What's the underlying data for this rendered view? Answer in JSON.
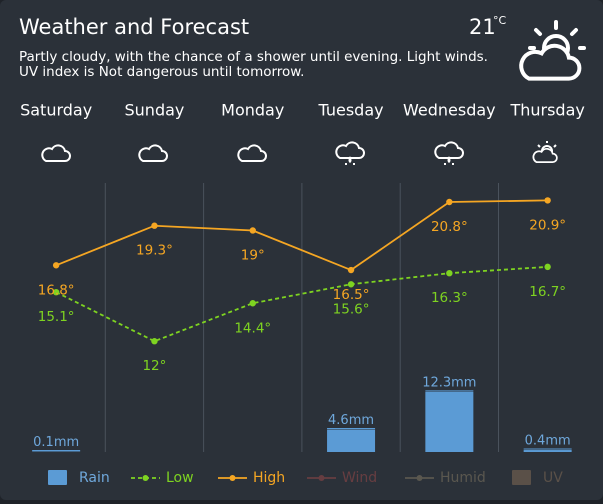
{
  "header": {
    "title": "Weather and Forecast",
    "temperature": 21,
    "unit": "°C",
    "description": [
      "Partly cloudy, with the chance of a shower until evening. Light winds.",
      "UV index is Not dangerous until tomorrow."
    ]
  },
  "chart_data": {
    "type": "line",
    "categories": [
      "Saturday",
      "Sunday",
      "Monday",
      "Tuesday",
      "Wednesday",
      "Thursday"
    ],
    "ylim": [
      5,
      22
    ],
    "y2lim": [
      0,
      55
    ],
    "series": [
      {
        "name": "Rain",
        "type": "bar",
        "axis": "y2",
        "color": "#5b9bd5",
        "values": [
          0.1,
          null,
          null,
          4.6,
          12.3,
          0.4
        ],
        "value_labels": [
          "0.1mm",
          null,
          null,
          "4.6mm",
          "12.3mm",
          "0.4mm"
        ]
      },
      {
        "name": "Low",
        "color": "#7ed321",
        "style": "dashed",
        "values": [
          15.1,
          12,
          14.4,
          15.6,
          16.3,
          16.7
        ],
        "value_labels": [
          "15.1°",
          "12°",
          "14.4°",
          "15.6°",
          "16.3°",
          "16.7°"
        ]
      },
      {
        "name": "High",
        "color": "#f5a623",
        "style": "solid",
        "values": [
          16.8,
          19.3,
          19,
          16.5,
          20.8,
          20.9
        ],
        "value_labels": [
          "16.8°",
          "19.3°",
          "19°",
          "16.5°",
          "20.8°",
          "20.9°"
        ]
      },
      {
        "name": "Wind",
        "color": "#c0504d",
        "hidden": true
      },
      {
        "name": "Humid",
        "color": "#a09070",
        "hidden": true
      },
      {
        "name": "UV",
        "color": "#a08060",
        "hidden": true,
        "type": "bar"
      }
    ]
  }
}
